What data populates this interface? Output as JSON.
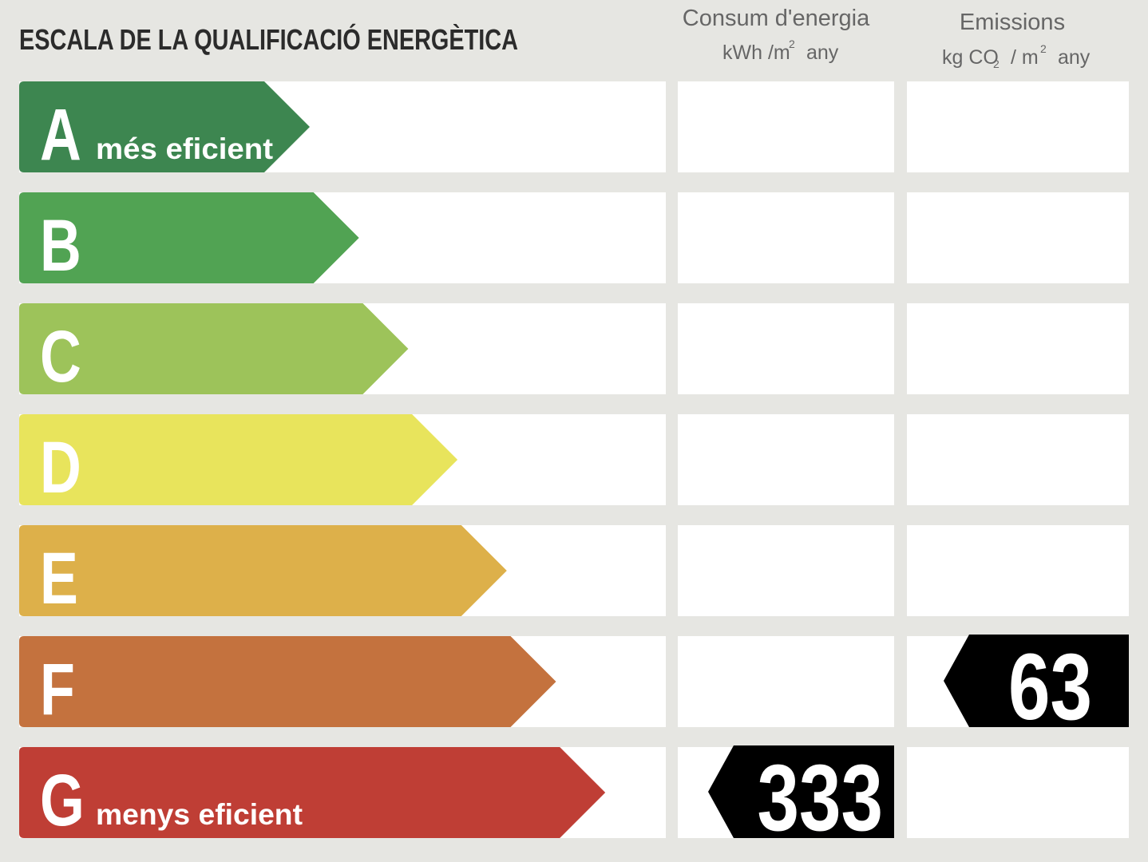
{
  "header": {
    "title": "ESCALA DE LA QUALIFICACIÓ ENERGÈTICA"
  },
  "columns": [
    {
      "title": "Consum d'energia",
      "unit_parts": [
        "kWh /m",
        "2",
        "any"
      ],
      "rating": "G",
      "value": 333
    },
    {
      "title": "Emissions",
      "unit_parts": [
        "kg CO",
        "2",
        "/ m",
        "2",
        "any"
      ],
      "rating": "F",
      "value": 63
    }
  ],
  "rows": [
    {
      "letter": "A",
      "label": "més eficient",
      "color": "#3d8650"
    },
    {
      "letter": "B",
      "color": "#51a353"
    },
    {
      "letter": "C",
      "color": "#9dc35a"
    },
    {
      "letter": "D",
      "color": "#e8e45c"
    },
    {
      "letter": "E",
      "color": "#ddb04a"
    },
    {
      "letter": "F",
      "color": "#c4723e"
    },
    {
      "letter": "G",
      "label": "menys eficient",
      "color": "#bf3e35"
    }
  ]
}
